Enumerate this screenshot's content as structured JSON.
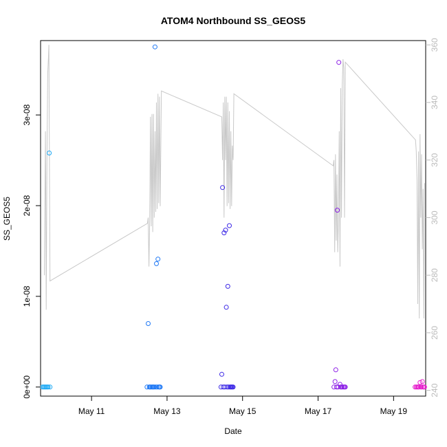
{
  "chart_data": {
    "type": "scatter",
    "title": "ATOM4 Northbound SS_GEOS5",
    "xlabel": "Date",
    "ylabel": "SS_GEOS5",
    "xlim": [
      9.65,
      19.85
    ],
    "ylim": [
      -1e-09,
      3.82e-08
    ],
    "x_ticks": [
      {
        "value": 11,
        "label": "May 11"
      },
      {
        "value": 13,
        "label": "May 13"
      },
      {
        "value": 15,
        "label": "May 15"
      },
      {
        "value": 17,
        "label": "May 17"
      },
      {
        "value": 19,
        "label": "May 19"
      }
    ],
    "y_ticks": [
      {
        "value": 0,
        "label": "0e+00"
      },
      {
        "value": 1e-08,
        "label": "1e-08"
      },
      {
        "value": 2e-08,
        "label": "2e-08"
      },
      {
        "value": 3e-08,
        "label": "3e-08"
      }
    ],
    "y2_ticks": [
      240,
      260,
      280,
      300,
      320,
      340,
      360
    ],
    "y2lim": [
      238,
      361.5
    ],
    "colors": {
      "line": "#c8c8c8",
      "right_axis": "#bbbbbb",
      "axis": "#000000"
    },
    "grid": false,
    "secondary_series": {
      "type": "line",
      "axis": "right",
      "x": [
        9.75,
        9.78,
        9.8,
        9.82,
        9.84,
        9.86,
        9.87,
        9.9,
        12.48,
        12.5,
        12.52,
        12.54,
        12.56,
        12.58,
        12.6,
        12.62,
        12.64,
        12.66,
        12.68,
        12.7,
        12.72,
        12.74,
        12.76,
        12.78,
        12.8,
        12.82,
        12.85,
        14.45,
        14.47,
        14.49,
        14.51,
        14.53,
        14.55,
        14.57,
        14.59,
        14.61,
        14.63,
        14.65,
        14.67,
        14.69,
        14.71,
        14.73,
        14.75,
        14.77,
        17.4,
        17.42,
        17.44,
        17.46,
        17.48,
        17.5,
        17.52,
        17.54,
        17.56,
        17.58,
        17.6,
        17.62,
        17.64,
        17.66,
        17.68,
        17.7,
        17.72,
        19.58,
        19.6,
        19.62,
        19.64,
        19.66,
        19.68,
        19.7,
        19.72,
        19.74,
        19.76,
        19.78,
        19.8,
        19.82
      ],
      "values": [
        280,
        330,
        268,
        320,
        350,
        356,
        360,
        278,
        298,
        300,
        283,
        300,
        335,
        297,
        336,
        295,
        336,
        300,
        330,
        302,
        340,
        303,
        343,
        305,
        342,
        304,
        344,
        335,
        320,
        340,
        300,
        342,
        320,
        342,
        304,
        340,
        305,
        337,
        303,
        330,
        304,
        325,
        320,
        343,
        318,
        320,
        288,
        322,
        292,
        315,
        288,
        300,
        330,
        283,
        345,
        300,
        346,
        355,
        352,
        300,
        354,
        327,
        323,
        313,
        270,
        323,
        265,
        329,
        300,
        322,
        289,
        310,
        265,
        312
      ]
    },
    "series": [
      {
        "color": "#1eaaf5",
        "x": [
          9.7,
          9.73,
          9.75,
          9.78,
          9.8,
          9.83,
          9.85,
          9.88,
          9.9
        ],
        "values": [
          3e-12,
          1e-12,
          4e-12,
          2e-12,
          0.0,
          1e-12,
          2e-12,
          2.58e-08,
          1e-12
        ]
      },
      {
        "color": "#1e78f5",
        "x": [
          12.47,
          12.5,
          12.53,
          12.55,
          12.57,
          12.6,
          12.62,
          12.64,
          12.66,
          12.68,
          12.7,
          12.72,
          12.74,
          12.76,
          12.78,
          12.8,
          12.82
        ],
        "values": [
          2e-12,
          7e-09,
          3e-12,
          2e-12,
          1e-12,
          4e-12,
          3e-12,
          1e-12,
          2e-12,
          3.75e-08,
          3e-12,
          1.36e-08,
          1e-12,
          1.41e-08,
          2e-12,
          1e-12,
          3e-12
        ]
      },
      {
        "color": "#3c28e6",
        "x": [
          14.43,
          14.45,
          14.47,
          14.49,
          14.51,
          14.53,
          14.55,
          14.57,
          14.59,
          14.61,
          14.63,
          14.65,
          14.67,
          14.69,
          14.71,
          14.73,
          14.75
        ],
        "values": [
          1e-12,
          1.4e-09,
          2.2e-08,
          2e-12,
          1.7e-08,
          3e-12,
          1.73e-08,
          8.8e-09,
          2e-12,
          1.11e-08,
          4e-12,
          1.78e-08,
          1e-12,
          2e-12,
          3e-12,
          1e-12,
          2e-12
        ]
      },
      {
        "color": "#8c1ee6",
        "x": [
          17.42,
          17.45,
          17.47,
          17.49,
          17.51,
          17.53,
          17.55,
          17.58,
          17.6,
          17.62,
          17.65,
          17.68,
          17.7,
          17.72
        ],
        "values": [
          1e-12,
          6e-10,
          1.9e-09,
          2e-12,
          1.95e-08,
          3e-12,
          3.58e-08,
          3e-10,
          2e-12,
          1e-12,
          2e-12,
          3e-12,
          1e-12,
          2e-12
        ]
      },
      {
        "color": "#e61ecc",
        "x": [
          19.57,
          19.6,
          19.63,
          19.65,
          19.67,
          19.7,
          19.72,
          19.74,
          19.76,
          19.78,
          19.8,
          19.82
        ],
        "values": [
          1e-12,
          2e-12,
          1e-12,
          3e-12,
          2e-12,
          5e-10,
          1e-12,
          4e-12,
          6e-10,
          2e-12,
          1e-12,
          3e-12
        ]
      }
    ]
  }
}
